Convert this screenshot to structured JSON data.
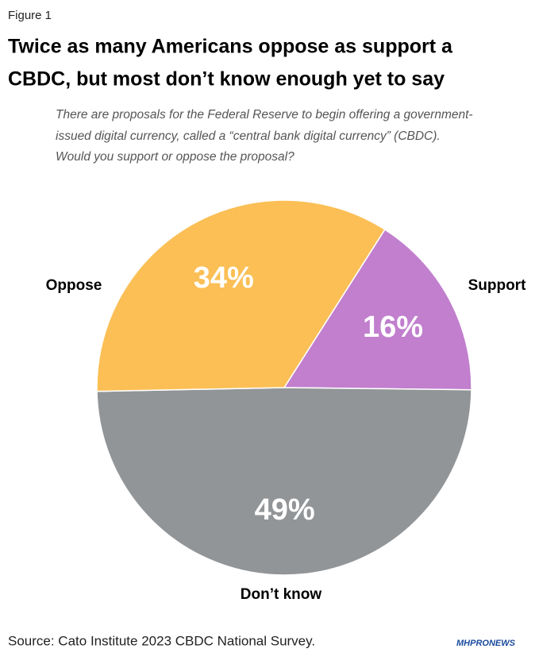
{
  "chart_data": {
    "type": "pie",
    "figure_label": "Figure 1",
    "title_lines": [
      "Twice as many Americans oppose as support a",
      "CBDC, but most don’t know enough yet to say"
    ],
    "subtitle_lines": [
      "There are proposals for the Federal Reserve to begin offering a government-",
      "issued digital currency, called a “central bank digital currency” (CBDC).",
      "Would you support or oppose the proposal?"
    ],
    "categories": [
      "Support",
      "Don’t know",
      "Oppose"
    ],
    "values": [
      16,
      49,
      34
    ],
    "value_labels": [
      "16%",
      "49%",
      "34%"
    ],
    "colors": [
      "#c17fce",
      "#929597",
      "#fbbf55"
    ],
    "source": "Source: Cato Institute 2023 CBDC National Survey.",
    "watermark": "MHPRONEWS"
  }
}
